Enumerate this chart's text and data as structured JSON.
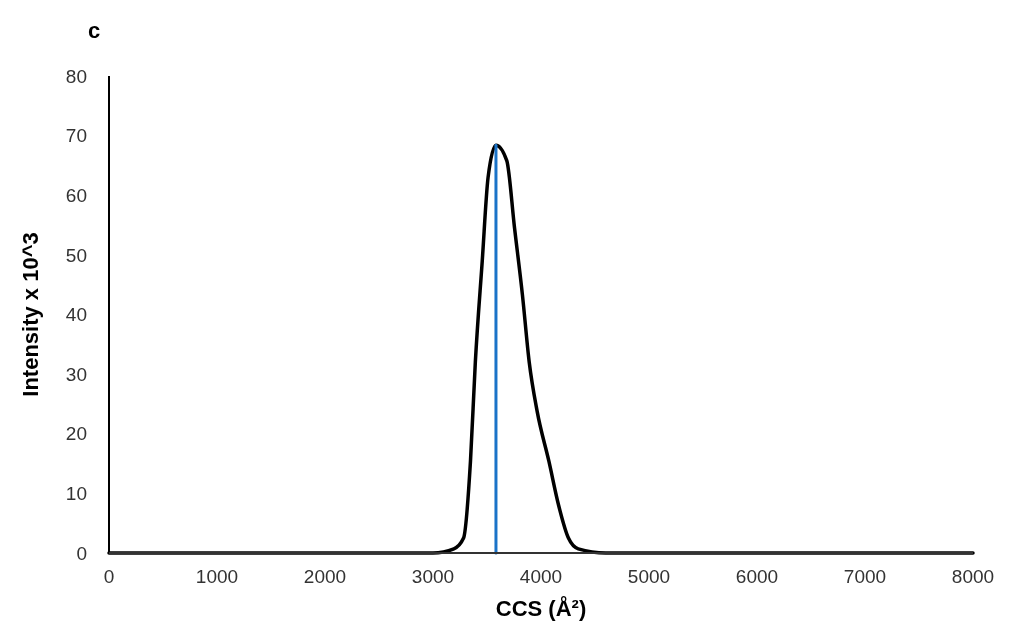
{
  "chart_data": {
    "type": "line",
    "title": "c",
    "xlabel": "CCS (Å²)",
    "ylabel": "Intensity x 10^3",
    "xlim": [
      0,
      8000
    ],
    "xticks": [
      0,
      1000,
      2000,
      3000,
      4000,
      5000,
      6000,
      7000,
      8000
    ],
    "ylim": [
      0,
      80
    ],
    "yticks": [
      0,
      10,
      20,
      30,
      40,
      50,
      60,
      70,
      80
    ],
    "grid": false,
    "marker": "none",
    "line_style": "solid",
    "series": [
      {
        "color": "#000000",
        "x": [
          0,
          3000,
          3193,
          3283,
          3347,
          3392,
          3456,
          3510,
          3583,
          3683,
          3755,
          3828,
          3891,
          3964,
          4073,
          4163,
          4254,
          4345,
          4600,
          8000
        ],
        "values": [
          0,
          0,
          0.7,
          2.5,
          15.4,
          32,
          49,
          63,
          68.4,
          65.8,
          54.5,
          43.3,
          32,
          23.8,
          15.4,
          8,
          2.5,
          0.7,
          0,
          0
        ]
      },
      {
        "color": "#1a73c8",
        "x": [
          3583,
          3583
        ],
        "values": [
          0,
          68.4
        ]
      }
    ]
  }
}
